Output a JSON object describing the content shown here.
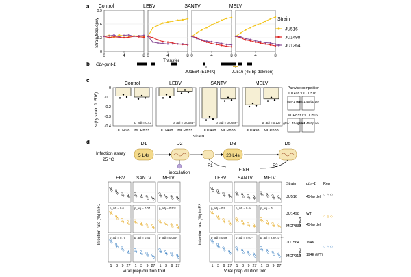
{
  "panel_labels": [
    "a",
    "b",
    "c",
    "d"
  ],
  "panel_a": {
    "facets": [
      "Control",
      "LEBV",
      "SANTV",
      "MELV"
    ],
    "ylabel": "Strain frequency",
    "xlabel": "Transfer",
    "xticks": [
      "0",
      "4",
      "8"
    ],
    "yticks": [
      "0",
      "0.3",
      "0.6",
      "0.9"
    ],
    "legend_title": "Strain",
    "legend": [
      {
        "name": "JU516",
        "color": "#f2c318"
      },
      {
        "name": "JU1498",
        "color": "#dd2222"
      },
      {
        "name": "JU1264",
        "color": "#8a4e96"
      }
    ]
  },
  "chart_data": {
    "type": "line",
    "title": "",
    "xlabel": "Transfer",
    "ylabel": "Strain frequency",
    "x": [
      0,
      1,
      2,
      3,
      4,
      5,
      6,
      7,
      8
    ],
    "ylim": [
      0,
      0.9
    ],
    "facets": [
      {
        "name": "Control",
        "series": [
          {
            "name": "JU516",
            "values": [
              0.33,
              0.35,
              0.3,
              0.36,
              0.34,
              0.33,
              0.34,
              0.34,
              0.33
            ]
          },
          {
            "name": "JU1498",
            "values": [
              0.33,
              0.3,
              0.32,
              0.31,
              0.3,
              0.31,
              0.33,
              0.32,
              0.31
            ]
          },
          {
            "name": "JU1264",
            "values": [
              0.33,
              0.34,
              0.36,
              0.32,
              0.35,
              0.36,
              0.33,
              0.34,
              0.35
            ]
          }
        ]
      },
      {
        "name": "LEBV",
        "series": [
          {
            "name": "JU516",
            "values": [
              0.33,
              0.52,
              0.57,
              0.62,
              0.64,
              0.66,
              0.68,
              0.69,
              0.71
            ]
          },
          {
            "name": "JU1498",
            "values": [
              0.33,
              0.3,
              0.25,
              0.21,
              0.2,
              0.18,
              0.16,
              0.15,
              0.14
            ]
          },
          {
            "name": "JU1264",
            "values": [
              0.33,
              0.2,
              0.18,
              0.17,
              0.16,
              0.16,
              0.16,
              0.16,
              0.15
            ]
          }
        ]
      },
      {
        "name": "SANTV",
        "series": [
          {
            "name": "JU516",
            "values": [
              0.33,
              0.4,
              0.47,
              0.52,
              0.58,
              0.63,
              0.68,
              0.72,
              0.74
            ]
          },
          {
            "name": "JU1498",
            "values": [
              0.33,
              0.3,
              0.24,
              0.2,
              0.17,
              0.15,
              0.13,
              0.11,
              0.1
            ]
          },
          {
            "name": "JU1264",
            "values": [
              0.33,
              0.28,
              0.25,
              0.22,
              0.21,
              0.19,
              0.17,
              0.15,
              0.14
            ]
          }
        ]
      },
      {
        "name": "MELV",
        "series": [
          {
            "name": "JU516",
            "values": [
              0.33,
              0.4,
              0.47,
              0.52,
              0.57,
              0.61,
              0.66,
              0.71,
              0.75
            ]
          },
          {
            "name": "JU1498",
            "values": [
              0.33,
              0.3,
              0.25,
              0.23,
              0.2,
              0.18,
              0.16,
              0.14,
              0.12
            ]
          },
          {
            "name": "JU1264",
            "values": [
              0.33,
              0.32,
              0.28,
              0.26,
              0.23,
              0.21,
              0.19,
              0.18,
              0.16
            ]
          }
        ]
      }
    ]
  },
  "panel_b": {
    "gene": "Cbr-gtnt-1",
    "labels": [
      "JU1564 (E194K)",
      "JU516 (45-bp deletion)"
    ]
  },
  "panel_c": {
    "facets": [
      "Control",
      "LEBV",
      "SANTV",
      "MELV"
    ],
    "ylabel": "s (by strain JU516)",
    "xlabel": "strain",
    "xticks": [
      "JU1498",
      "MCP833"
    ],
    "yticks": [
      "0",
      "-0.1",
      "-0.2",
      "-0.3",
      "-0.4"
    ],
    "pvalues": [
      "p_adj = 0.43",
      "p_adj = 0.0086*",
      "p_adj = 0.0086*",
      "p_adj = 0.127"
    ],
    "bars": [
      {
        "facet": "Control",
        "values": [
          -0.09,
          -0.1
        ]
      },
      {
        "facet": "LEBV",
        "values": [
          -0.09,
          -0.04
        ]
      },
      {
        "facet": "SANTV",
        "values": [
          -0.32,
          -0.12
        ]
      },
      {
        "facet": "MELV",
        "values": [
          -0.18,
          -0.12
        ]
      }
    ],
    "side_title": "Pairwise competition",
    "side_rows": [
      "JU1498 v.s. JU516",
      "MCP833 v.s. JU516"
    ],
    "side_boxes": [
      "gtnt-1 WT",
      "gtnt-1 45-bp del",
      "gtnt-1 45-bp del",
      "gtnt-1 45-bp del"
    ]
  },
  "panel_d_schema": {
    "assay": "Infection assay",
    "temp": "25 °C",
    "days": [
      "D1",
      "D2",
      "D3",
      "D5"
    ],
    "boxes": [
      "5 L4s",
      "20 L4s"
    ],
    "steps": [
      "inoculation",
      "F1",
      "FISH",
      "F2"
    ]
  },
  "panel_d": {
    "facets": [
      "LEBV",
      "SANTV",
      "MELV"
    ],
    "ylabel_f1": "Infection rate (%) in F1",
    "ylabel_f2": "Infection rate (%) in F2",
    "xlabel": "Viral prep dilution fold",
    "xticks": [
      "1",
      "3",
      "9",
      "27"
    ],
    "pvals_f1": [
      "p_adj = 0.6",
      "p_adj = 0.07",
      "p_adj = 0.51*",
      "p_adj = 0.75",
      "p_adj = 0.44",
      "p_adj = 0.009*"
    ],
    "pvals_f2": [
      "p_adj = 0.9",
      "p_adj = 0.44",
      "p_adj = 0*",
      "p_adj = 0.69",
      "p_adj = 0.01*",
      "p_adj = 2.8×10⁻⁴*"
    ],
    "strain_header": "Strain",
    "gene_header": "gtnt-1",
    "rep_header": "Rep",
    "strains": [
      {
        "name": "JU516",
        "gene": "45-bp del",
        "color": "#333333"
      },
      {
        "name": "JU1498",
        "gene": "WT",
        "color": "#e6a91e"
      },
      {
        "name": "MCP833",
        "gene": "45-bp del",
        "color": "#e6a91e"
      },
      {
        "name": "JU1564",
        "gene": "194K",
        "color": "#3a7fc2"
      },
      {
        "name": "MCP919",
        "gene": "194E (WT)",
        "color": "#3a7fc2"
      }
    ],
    "edited": "edited",
    "rep_symbols": [
      "○",
      "△",
      "◇"
    ]
  }
}
